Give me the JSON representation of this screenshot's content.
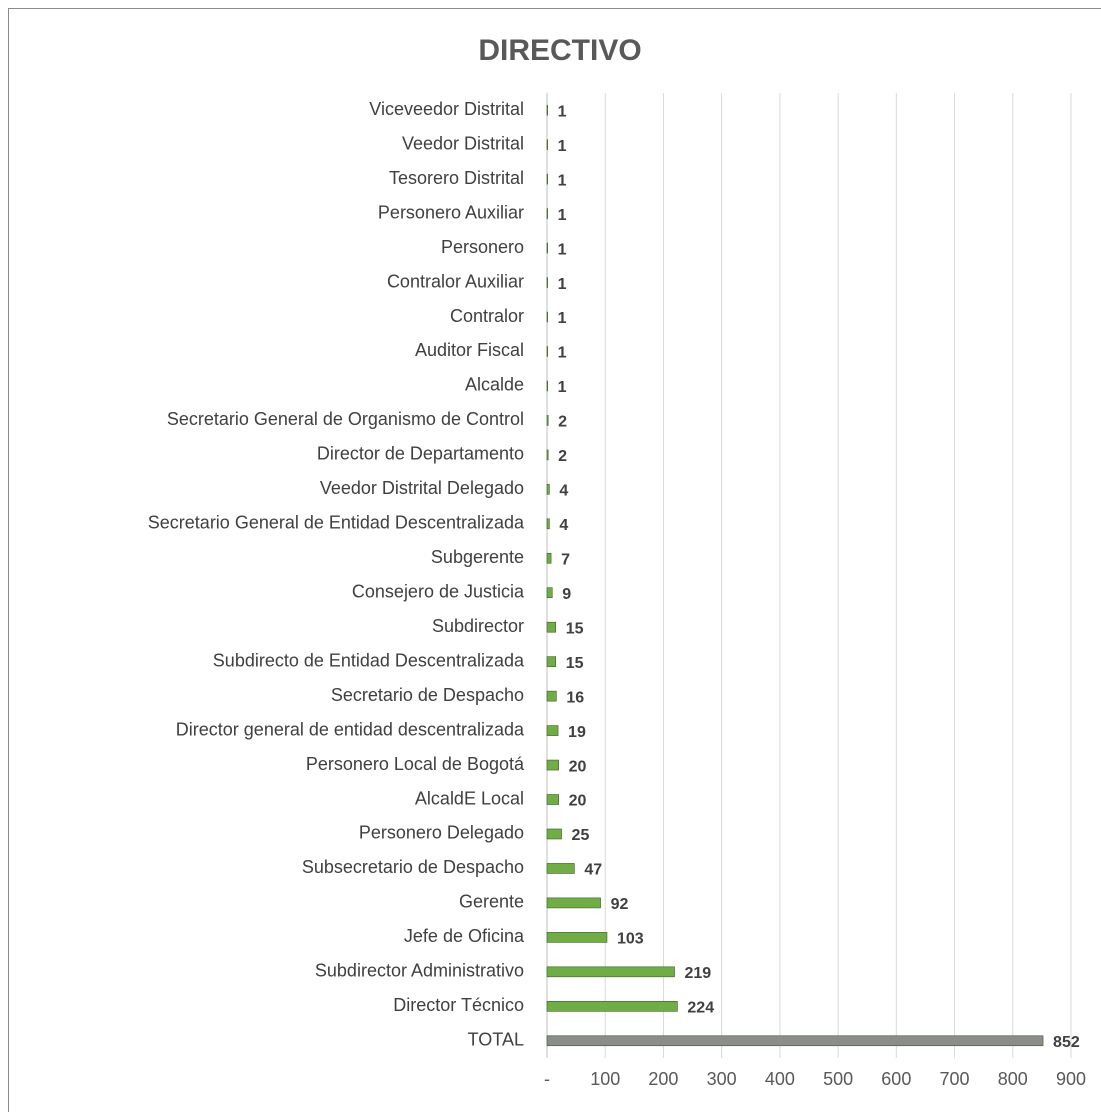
{
  "chart_data": {
    "type": "barh",
    "title": "DIRECTIVO",
    "categories": [
      "Viceveedor Distrital",
      "Veedor Distrital",
      "Tesorero Distrital",
      "Personero Auxiliar",
      "Personero",
      "Contralor Auxiliar",
      "Contralor",
      "Auditor Fiscal",
      "Alcalde",
      "Secretario General de Organismo de Control",
      "Director de Departamento",
      "Veedor Distrital Delegado",
      "Secretario General de Entidad Descentralizada",
      "Subgerente",
      "Consejero de Justicia",
      "Subdirector",
      "Subdirecto de Entidad Descentralizada",
      "Secretario de Despacho",
      "Director general de entidad descentralizada",
      "Personero Local de Bogotá",
      "AlcaldE Local",
      "Personero Delegado",
      "Subsecretario de Despacho",
      "Gerente",
      "Jefe de Oficina",
      "Subdirector Administrativo",
      "Director Técnico",
      "TOTAL"
    ],
    "values": [
      1,
      1,
      1,
      1,
      1,
      1,
      1,
      1,
      1,
      2,
      2,
      4,
      4,
      7,
      9,
      15,
      15,
      16,
      19,
      20,
      20,
      25,
      47,
      92,
      103,
      219,
      224,
      852
    ],
    "colors": [
      "#70ad47",
      "#70ad47",
      "#70ad47",
      "#70ad47",
      "#70ad47",
      "#70ad47",
      "#70ad47",
      "#70ad47",
      "#70ad47",
      "#70ad47",
      "#70ad47",
      "#70ad47",
      "#70ad47",
      "#70ad47",
      "#70ad47",
      "#70ad47",
      "#70ad47",
      "#70ad47",
      "#70ad47",
      "#70ad47",
      "#70ad47",
      "#70ad47",
      "#70ad47",
      "#70ad47",
      "#70ad47",
      "#70ad47",
      "#70ad47",
      "#8c8c8c"
    ],
    "xlim": [
      0,
      900
    ],
    "xticks": [
      {
        "value": 0,
        "label": "-"
      },
      100,
      200,
      300,
      400,
      500,
      600,
      700,
      800,
      900
    ],
    "grid": true
  }
}
